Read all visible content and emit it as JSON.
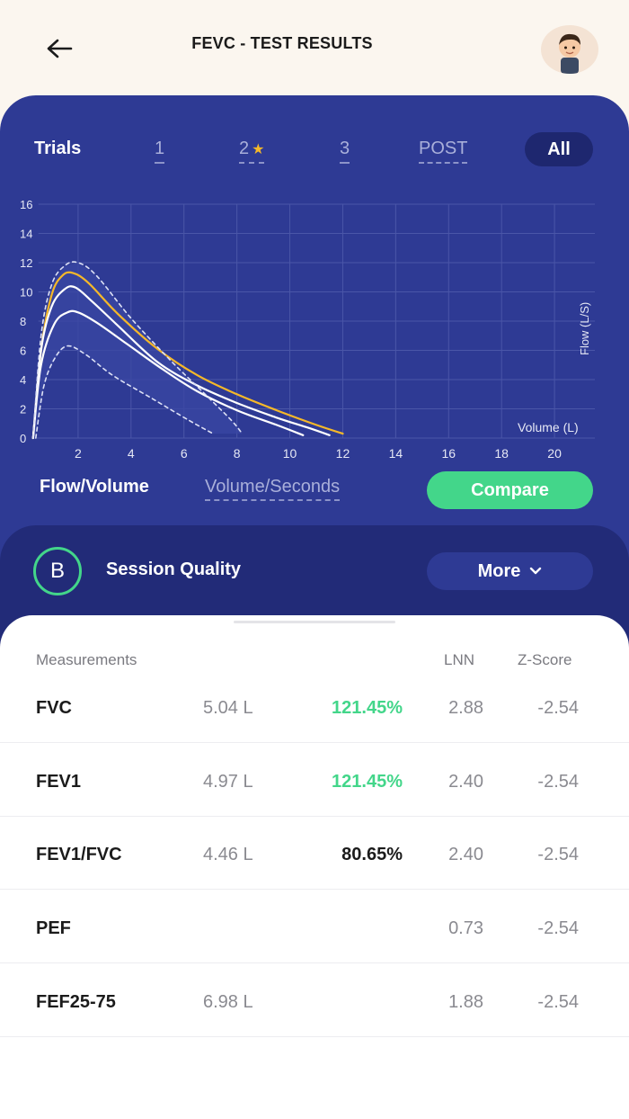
{
  "header": {
    "title": "FEVC - TEST RESULTS",
    "back_icon": "arrow-left-icon",
    "avatar_icon": "user-avatar"
  },
  "trials": {
    "label": "Trials",
    "tabs": [
      {
        "label": "1",
        "starred": false
      },
      {
        "label": "2",
        "starred": true
      },
      {
        "label": "3",
        "starred": false
      },
      {
        "label": "POST",
        "starred": false
      }
    ],
    "active_label": "All",
    "star_icon": "star-icon"
  },
  "colors": {
    "panel": "#2E3A94",
    "panel_dark": "#222B78",
    "accent_green": "#43D68A",
    "curve_highlight": "#F5B829",
    "curve_white": "#FFFFFF"
  },
  "chart_data": {
    "type": "line",
    "x_label": "Volume (L)",
    "y_label": "Flow (L/S)",
    "x_ticks": [
      2,
      4,
      6,
      8,
      10,
      12,
      14,
      16,
      18,
      20
    ],
    "y_ticks": [
      0,
      2,
      4,
      6,
      8,
      10,
      12,
      14,
      16
    ],
    "xlim": [
      0,
      22
    ],
    "ylim": [
      0,
      16
    ],
    "grid": true,
    "series": [
      {
        "style": "solid-yellow",
        "points": [
          [
            0.3,
            0
          ],
          [
            0.6,
            6
          ],
          [
            1,
            9.8
          ],
          [
            1.4,
            11.1
          ],
          [
            1.8,
            11.3
          ],
          [
            2.4,
            10.6
          ],
          [
            3.5,
            8.5
          ],
          [
            5,
            6.1
          ],
          [
            6.5,
            4.3
          ],
          [
            8,
            3
          ],
          [
            9.5,
            1.9
          ],
          [
            11,
            0.9
          ],
          [
            12,
            0.3
          ]
        ]
      },
      {
        "style": "solid-white",
        "points": [
          [
            0.3,
            0
          ],
          [
            0.6,
            6
          ],
          [
            1,
            9
          ],
          [
            1.5,
            10.2
          ],
          [
            1.9,
            10.3
          ],
          [
            2.5,
            9.4
          ],
          [
            3.5,
            7.7
          ],
          [
            5,
            5.2
          ],
          [
            6.5,
            3.6
          ],
          [
            8,
            2.4
          ],
          [
            9.5,
            1.4
          ],
          [
            10.7,
            0.7
          ],
          [
            11.5,
            0.2
          ]
        ]
      },
      {
        "style": "solid-white",
        "points": [
          [
            0.3,
            0
          ],
          [
            0.6,
            5
          ],
          [
            1.1,
            7.8
          ],
          [
            1.6,
            8.6
          ],
          [
            2,
            8.6
          ],
          [
            2.7,
            7.9
          ],
          [
            3.8,
            6.5
          ],
          [
            5.2,
            4.7
          ],
          [
            6.5,
            3.2
          ],
          [
            8,
            1.9
          ],
          [
            9.5,
            0.9
          ],
          [
            10.5,
            0.2
          ]
        ]
      },
      {
        "style": "dashed-white",
        "points": [
          [
            0.3,
            0
          ],
          [
            0.6,
            7
          ],
          [
            1,
            10.5
          ],
          [
            1.5,
            11.8
          ],
          [
            2,
            12
          ],
          [
            2.7,
            11.1
          ],
          [
            4,
            8.2
          ],
          [
            5.5,
            5.3
          ],
          [
            6.8,
            3
          ],
          [
            7.8,
            1.2
          ],
          [
            8.2,
            0.3
          ]
        ]
      },
      {
        "style": "dashed-white",
        "points": [
          [
            0.4,
            0
          ],
          [
            0.7,
            3.5
          ],
          [
            1.1,
            5.4
          ],
          [
            1.6,
            6.3
          ],
          [
            2.3,
            5.7
          ],
          [
            3.3,
            4.3
          ],
          [
            4.8,
            2.7
          ],
          [
            6.2,
            1.2
          ],
          [
            7.1,
            0.3
          ]
        ]
      }
    ]
  },
  "chart_modes": {
    "active": "Flow/Volume",
    "inactive": "Volume/Seconds"
  },
  "compare_label": "Compare",
  "session": {
    "grade": "B",
    "label": "Session Quality",
    "more_label": "More",
    "more_icon": "chevron-down-icon"
  },
  "table": {
    "headers": {
      "measurement": "Measurements",
      "lnn": "LNN",
      "z": "Z-Score"
    },
    "rows": [
      {
        "name": "FVC",
        "value": "5.04 L",
        "pct": "121.45%",
        "pct_highlight": true,
        "lnn": "2.88",
        "z": "-2.54"
      },
      {
        "name": "FEV1",
        "value": "4.97 L",
        "pct": "121.45%",
        "pct_highlight": true,
        "lnn": "2.40",
        "z": "-2.54"
      },
      {
        "name": "FEV1/FVC",
        "value": "4.46 L",
        "pct": "80.65%",
        "pct_highlight": false,
        "lnn": "2.40",
        "z": "-2.54"
      },
      {
        "name": "PEF",
        "value": "",
        "pct": "",
        "pct_highlight": false,
        "lnn": "0.73",
        "z": "-2.54"
      },
      {
        "name": "FEF25-75",
        "value": "6.98 L",
        "pct": "",
        "pct_highlight": false,
        "lnn": "1.88",
        "z": "-2.54"
      }
    ]
  }
}
